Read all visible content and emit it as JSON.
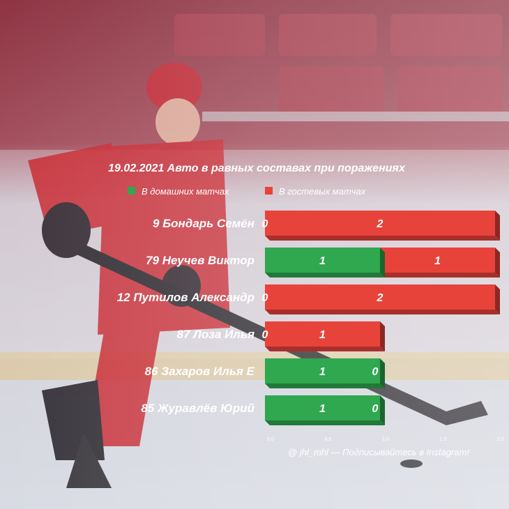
{
  "chart_data": {
    "type": "bar",
    "orientation": "horizontal",
    "stacked": true,
    "title": "19.02.2021 Авто в равных составах при поражениях",
    "legend": {
      "placement": "top",
      "items": [
        {
          "label": "В домашних матчах",
          "color": "#2fa84f"
        },
        {
          "label": "В гостевых матчах",
          "color": "#e8433a"
        }
      ]
    },
    "categories": [
      "9 Бондарь Семён",
      "79 Неучев Виктор",
      "12 Путилов Александр",
      "87 Лоза Илья",
      "86 Захаров Илья Е",
      "85 Журавлёв Юрий"
    ],
    "series": [
      {
        "name": "В домашних матчах",
        "color": "#2fa84f",
        "values": [
          0,
          1,
          0,
          0,
          1,
          1
        ]
      },
      {
        "name": "В гостевых матчах",
        "color": "#e8433a",
        "values": [
          2,
          1,
          2,
          1,
          0,
          0
        ]
      }
    ],
    "x_ticks": [
      "0.0",
      "0.5",
      "1.0",
      "1.5",
      "2.0"
    ],
    "xlim": [
      0,
      2
    ],
    "grid": false
  },
  "footer": "@ jhl_mhl — Подписывайтесь в Instagram!"
}
